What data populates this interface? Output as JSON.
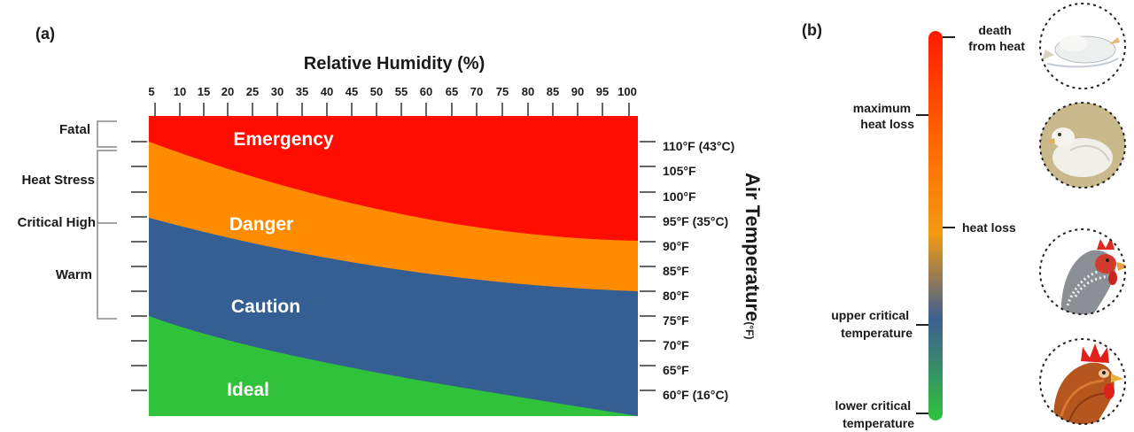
{
  "panel_a": {
    "panel_label": "(a)",
    "x_title": "Relative Humidity (%)",
    "humidity_ticks": [
      "5",
      "10",
      "15",
      "20",
      "25",
      "30",
      "35",
      "40",
      "45",
      "50",
      "55",
      "60",
      "65",
      "70",
      "75",
      "80",
      "85",
      "90",
      "95",
      "100"
    ],
    "temp_labels": [
      "110°F (43°C)",
      "105°F",
      "100°F",
      "95°F (35°C)",
      "90°F",
      "85°F",
      "80°F",
      "75°F",
      "70°F",
      "65°F",
      "60°F (16°C)"
    ],
    "y_title": "Air Temperature",
    "y_unit": "(°F)",
    "zones": [
      {
        "name": "Emergency",
        "color": "#ff0d00"
      },
      {
        "name": "Danger",
        "color": "#ff8c00"
      },
      {
        "name": "Caution",
        "color": "#355f93"
      },
      {
        "name": "Ideal",
        "color": "#2fc23a"
      }
    ],
    "categories": [
      "Fatal",
      "Heat Stress",
      "Critical High",
      "Warm"
    ]
  },
  "panel_b": {
    "panel_label": "(b)",
    "scale_labels": [
      {
        "line1": "death",
        "line2": "from heat"
      },
      {
        "line1": "maximum",
        "line2": "heat loss"
      },
      {
        "line1": "heat loss",
        "line2": ""
      },
      {
        "line1": "upper critical",
        "line2": "temperature"
      },
      {
        "line1": "lower critical",
        "line2": "temperature"
      }
    ],
    "gradient_colors": [
      "#ff1a00",
      "#ff6a00",
      "#f39a12",
      "#3d5f93",
      "#2fc23a"
    ],
    "illustrations": [
      "dead-chicken",
      "lying-chicken",
      "panting-chicken",
      "healthy-rooster"
    ]
  }
}
